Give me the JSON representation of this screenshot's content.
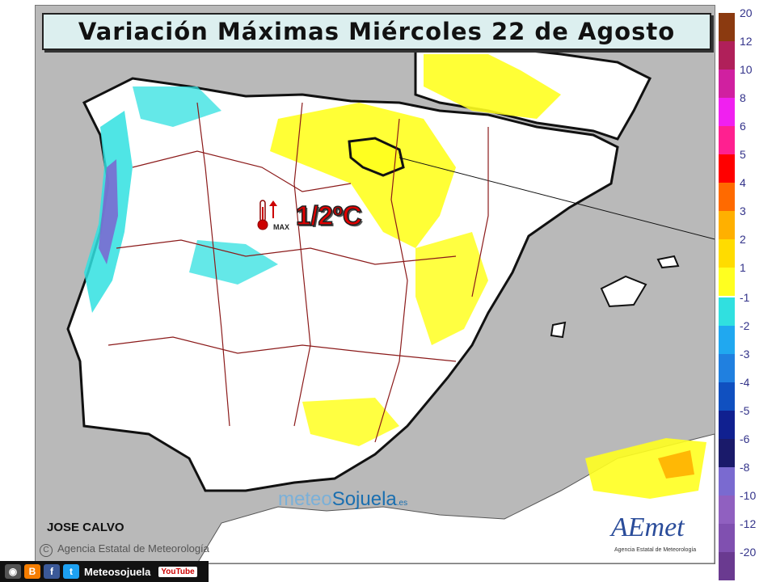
{
  "title": "Variación Máximas Miércoles 22 de Agosto",
  "highlight": {
    "region": "La Rioja",
    "anomaly_text": "1/2ºC",
    "icon": "thermometer-max-icon",
    "icon_label": "MAX"
  },
  "author": "JOSE CALVO",
  "agency": "Agencia Estatal de Meteorología",
  "watermark": {
    "part1": "meteo",
    "part2": "Sojuela",
    "suffix": ".es"
  },
  "aemet": {
    "name": "AEmet",
    "sub": "Agencia Estatal de Meteorología"
  },
  "social": {
    "name": "Meteosojuela",
    "youtube": "YouTube"
  },
  "legend": {
    "positive": [
      {
        "label": "20",
        "color": "#8b3a10"
      },
      {
        "label": "12",
        "color": "#b0205a"
      },
      {
        "label": "10",
        "color": "#d020a0"
      },
      {
        "label": "8",
        "color": "#f020f0"
      },
      {
        "label": "6",
        "color": "#ff2090"
      },
      {
        "label": "5",
        "color": "#ff0000"
      },
      {
        "label": "4",
        "color": "#ff6a00"
      },
      {
        "label": "3",
        "color": "#ffb000"
      },
      {
        "label": "2",
        "color": "#ffdc00"
      },
      {
        "label": "1",
        "color": "#ffff20"
      }
    ],
    "negative": [
      {
        "label": "-1",
        "color": "#30e0e0"
      },
      {
        "label": "-2",
        "color": "#20a8f0"
      },
      {
        "label": "-3",
        "color": "#2080e0"
      },
      {
        "label": "-4",
        "color": "#1050c0"
      },
      {
        "label": "-5",
        "color": "#102090"
      },
      {
        "label": "-6",
        "color": "#1a1a6a"
      },
      {
        "label": "-8",
        "color": "#7a6ad0"
      },
      {
        "label": "-10",
        "color": "#9060c0"
      },
      {
        "label": "-12",
        "color": "#8050b0"
      },
      {
        "label": "-20",
        "color": "#6a3a90"
      }
    ]
  }
}
